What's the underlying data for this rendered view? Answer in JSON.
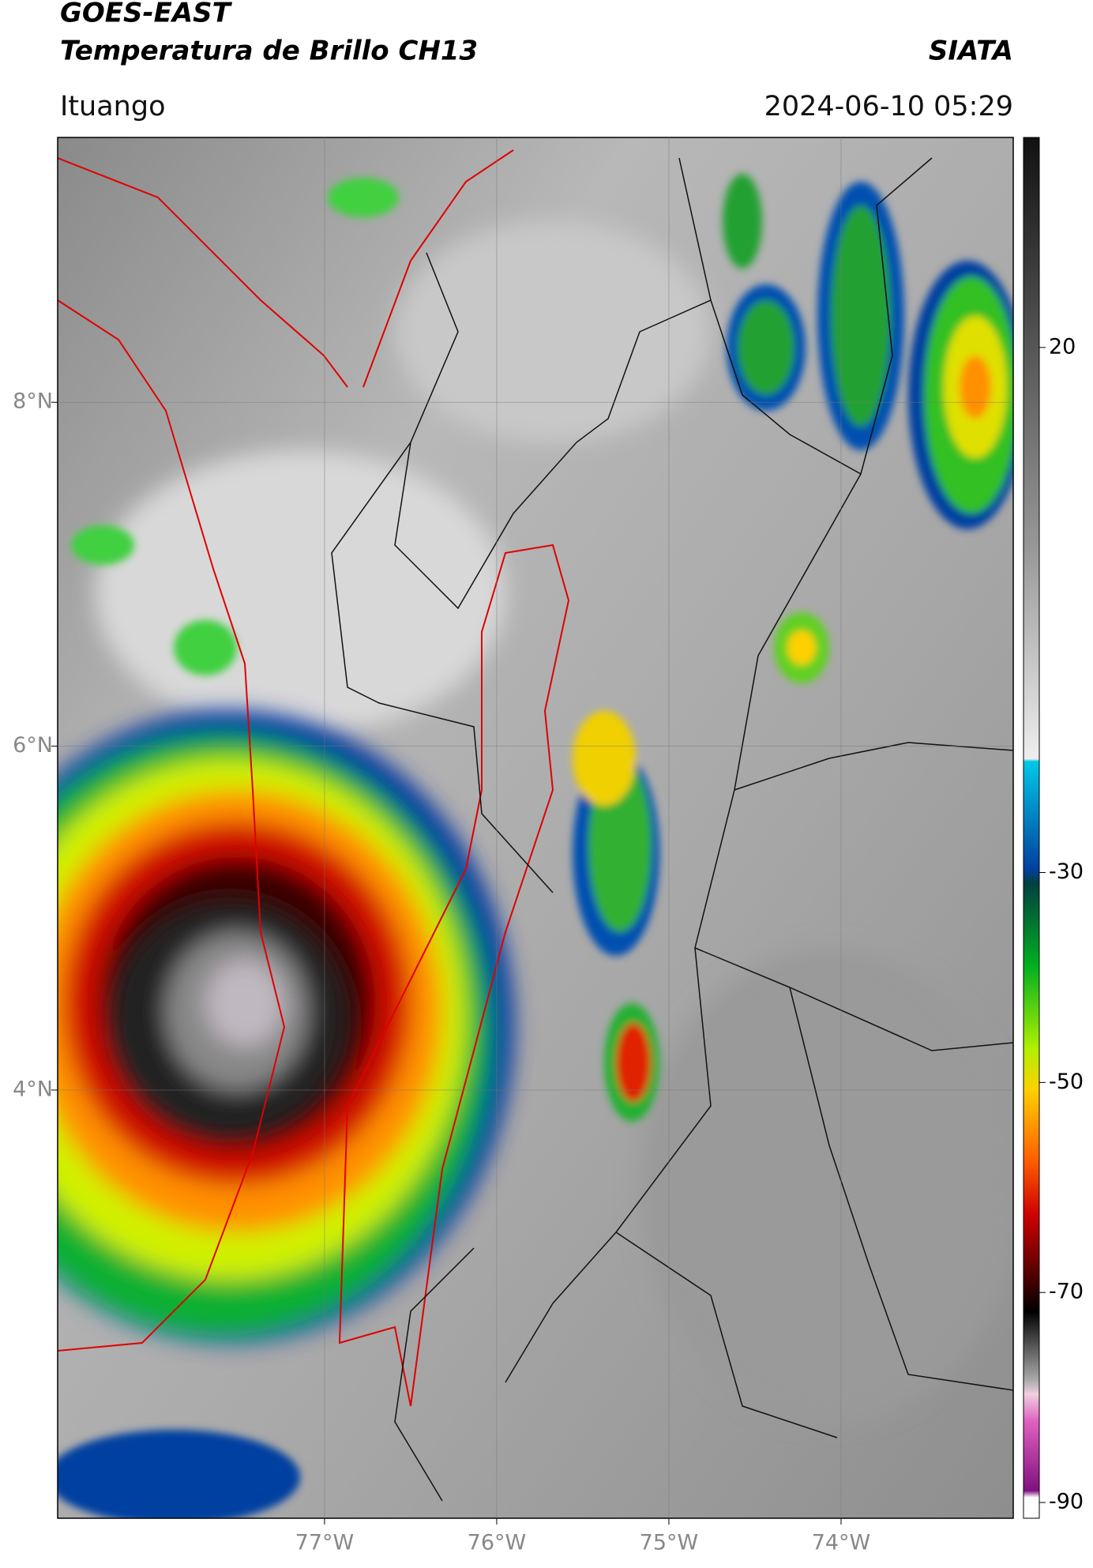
{
  "header": {
    "title": "GOES-EAST",
    "subtitle": "Temperatura de Brillo CH13",
    "agency": "SIATA",
    "location": "Ituango",
    "datetime": "2024-06-10 05:29"
  },
  "map": {
    "xlim": [
      -78.55,
      -73.0
    ],
    "ylim": [
      1.51,
      9.54
    ],
    "xticks": [
      {
        "value": -77,
        "label": "77°W"
      },
      {
        "value": -76,
        "label": "76°W"
      },
      {
        "value": -75,
        "label": "75°W"
      },
      {
        "value": -74,
        "label": "74°W"
      }
    ],
    "yticks": [
      {
        "value": 8,
        "label": "8°N"
      },
      {
        "value": 6,
        "label": "6°N"
      },
      {
        "value": 4,
        "label": "4°N"
      }
    ]
  },
  "colorbar": {
    "lim": [
      -91.5,
      40
    ],
    "ticks": [
      20,
      -30,
      -50,
      -70,
      -90
    ]
  }
}
